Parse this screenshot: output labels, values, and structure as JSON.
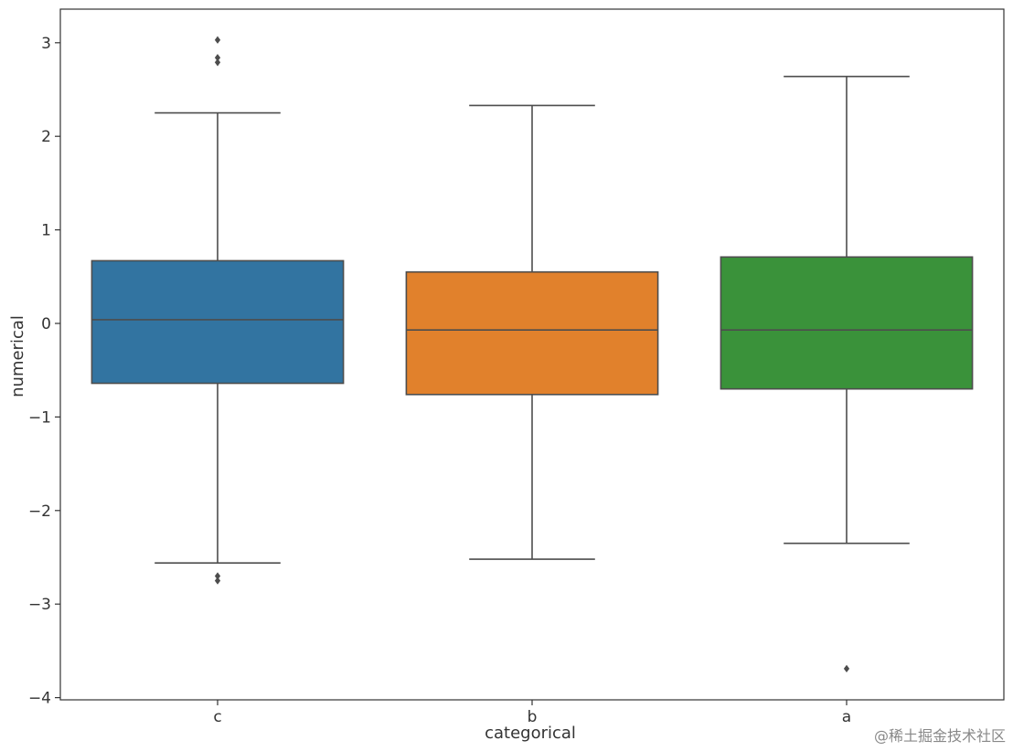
{
  "chart_data": {
    "type": "box",
    "title": "",
    "xlabel": "categorical",
    "ylabel": "numerical",
    "ylim": [
      -4.0,
      3.4
    ],
    "yticks": [
      3,
      2,
      1,
      0,
      -1,
      -2,
      -3,
      -4
    ],
    "ytick_labels": [
      "3",
      "2",
      "1",
      "0",
      "−1",
      "−2",
      "−3",
      "−4"
    ],
    "grid": false,
    "categories": [
      "c",
      "b",
      "a"
    ],
    "boxes": [
      {
        "category": "c",
        "color": "#3274a1",
        "whisker_low": -2.56,
        "q1": -0.64,
        "median": 0.04,
        "q3": 0.67,
        "whisker_high": 2.25,
        "outliers": [
          3.03,
          2.84,
          2.79,
          -2.7,
          -2.75
        ]
      },
      {
        "category": "b",
        "color": "#e1812c",
        "whisker_low": -2.52,
        "q1": -0.76,
        "median": -0.07,
        "q3": 0.55,
        "whisker_high": 2.33,
        "outliers": []
      },
      {
        "category": "a",
        "color": "#3a923a",
        "whisker_low": -2.35,
        "q1": -0.7,
        "median": -0.07,
        "q3": 0.71,
        "whisker_high": 2.64,
        "outliers": [
          -3.69
        ]
      }
    ]
  },
  "watermark": "@稀土掘金技术社区"
}
